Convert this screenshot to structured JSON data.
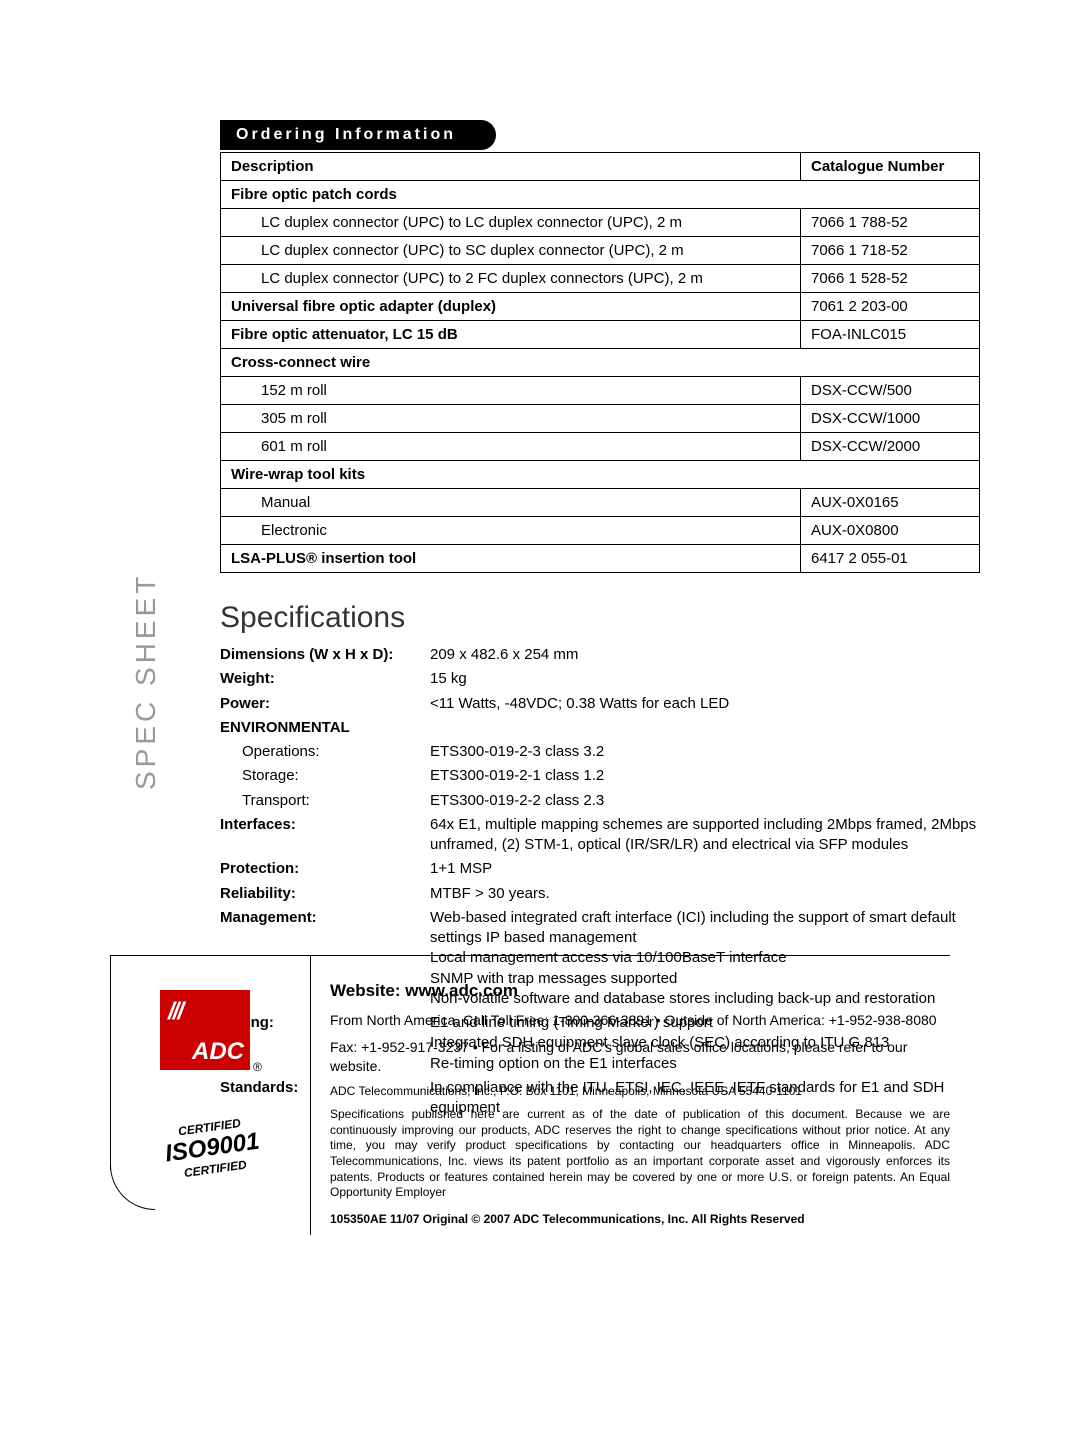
{
  "ordering_header": "Ordering Information",
  "table": {
    "columns": [
      "Description",
      "Catalogue Number"
    ],
    "rows": [
      {
        "type": "section",
        "desc": "Fibre optic patch cords",
        "cat": ""
      },
      {
        "type": "indent",
        "desc": "LC duplex connector (UPC) to LC duplex connector (UPC), 2 m",
        "cat": "7066 1 788-52"
      },
      {
        "type": "indent",
        "desc": "LC duplex connector (UPC) to SC duplex connector (UPC), 2 m",
        "cat": "7066 1 718-52"
      },
      {
        "type": "indent",
        "desc": "LC duplex connector (UPC) to 2 FC duplex connectors (UPC), 2 m",
        "cat": "7066 1 528-52"
      },
      {
        "type": "section",
        "desc": "Universal fibre optic adapter (duplex)",
        "cat": "7061 2 203-00"
      },
      {
        "type": "section",
        "desc": "Fibre optic attenuator, LC 15 dB",
        "cat": "FOA-INLC015"
      },
      {
        "type": "section",
        "desc": "Cross-connect wire",
        "cat": ""
      },
      {
        "type": "indent",
        "desc": "152 m roll",
        "cat": "DSX-CCW/500"
      },
      {
        "type": "indent",
        "desc": "305 m roll",
        "cat": "DSX-CCW/1000"
      },
      {
        "type": "indent",
        "desc": "601 m roll",
        "cat": "DSX-CCW/2000"
      },
      {
        "type": "section",
        "desc": "Wire-wrap tool kits",
        "cat": ""
      },
      {
        "type": "indent",
        "desc": "Manual",
        "cat": "AUX-0X0165"
      },
      {
        "type": "indent",
        "desc": "Electronic",
        "cat": "AUX-0X0800"
      },
      {
        "type": "section",
        "desc": "LSA-PLUS® insertion tool",
        "cat": "6417 2 055-01"
      }
    ]
  },
  "specs_title": "Specifications",
  "specs": [
    {
      "label": "Dimensions (W x H x D):",
      "value": "209 x 482.6 x 254 mm"
    },
    {
      "label": "Weight:",
      "value": "15 kg"
    },
    {
      "label": "Power:",
      "value": "<11 Watts, -48VDC; 0.38 Watts for each LED"
    },
    {
      "label": "ENVIRONMENTAL",
      "value": ""
    },
    {
      "sublabel": "Operations:",
      "value": "ETS300-019-2-3 class 3.2"
    },
    {
      "sublabel": "Storage:",
      "value": "ETS300-019-2-1 class 1.2"
    },
    {
      "sublabel": "Transport:",
      "value": "ETS300-019-2-2 class 2.3"
    },
    {
      "label": "Interfaces:",
      "value": "64x E1, multiple mapping schemes are supported including 2Mbps framed, 2Mbps unframed, (2) STM-1, optical (IR/SR/LR) and electrical via SFP modules"
    },
    {
      "label": "Protection:",
      "value": "1+1 MSP"
    },
    {
      "label": "Reliability:",
      "value": "MTBF > 30 years."
    },
    {
      "label": "Management:",
      "value": "Web-based integrated craft interface (ICI) including the support of smart default settings IP based management\nLocal management access via 10/100BaseT interface\nSNMP with trap messages supported\nNon-volatile software and database stores including back-up and restoration"
    },
    {
      "label": "Timing:",
      "value": "E1 and line timing (Timing Marker) support\nIntegrated SDH equipment slave clock (SEC) according to ITU G.813\nRe-timing option on the E1 interfaces"
    },
    {
      "label": "Standards:",
      "value": "In compliance with the ITU, ETSI, IEC, IEEE, IETF standards for E1 and SDH equipment"
    }
  ],
  "side_label": "SPEC SHEET",
  "footer": {
    "website": "Website: www.adc.com",
    "contact1": "From North America, Call Toll Free: 1-800-366-3891 • Outside of North America: +1-952-938-8080",
    "contact2": "Fax: +1-952-917-3237 • For a listing of ADC's global sales office locations, please refer to our website.",
    "address": "ADC Telecommunications, Inc., P.O. Box 1101, Minneapolis, Minnesota  USA  55440-1101",
    "fine": "Specifications published here are current as of the date of publication of this document. Because we are continuously improving our products, ADC reserves the right to change specifications without prior notice. At any time, you may verify product specifications by contacting our headquarters office in Minneapolis. ADC Telecommunications, Inc. views its patent portfolio as an important corporate asset and vigorously enforces its patents. Products or features contained herein may be covered by one or more U.S. or foreign patents. An Equal Opportunity Employer",
    "docnum": "105350AE   11/07   Original   ©   2007   ADC Telecommunications, Inc.   All Rights Reserved",
    "iso_top": "CERTIFIED",
    "iso_main": "ISO9001",
    "iso_bottom": "CERTIFIED"
  },
  "logo": {
    "stripes": "///",
    "text": "ADC"
  }
}
